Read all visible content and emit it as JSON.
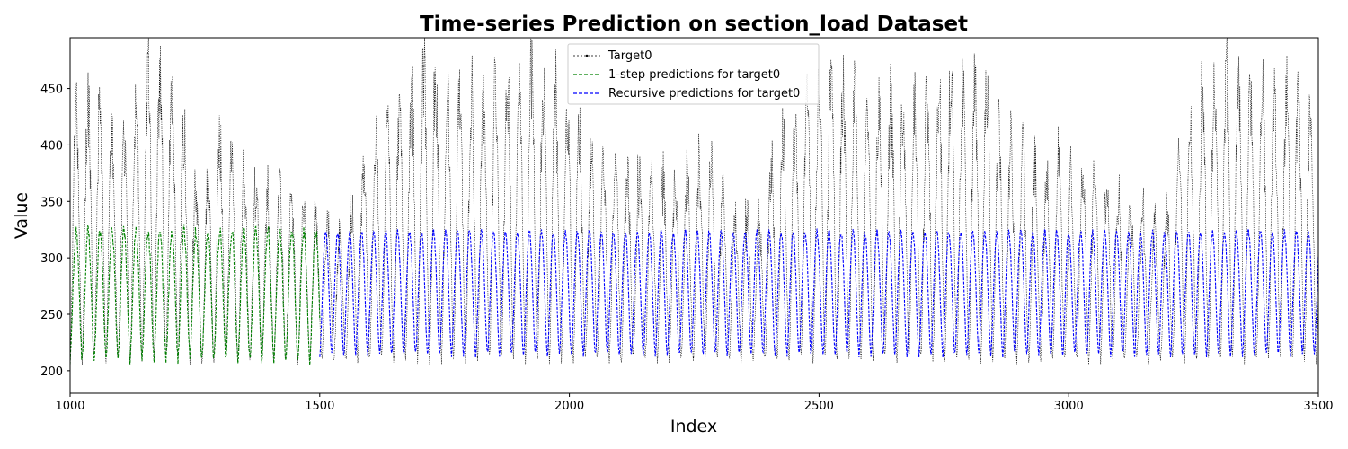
{
  "chart_data": {
    "type": "line",
    "title": "Time-series Prediction on section_load Dataset",
    "xlabel": "Index",
    "ylabel": "Value",
    "xlim": [
      1000,
      3500
    ],
    "ylim": [
      180,
      495
    ],
    "x_ticks": [
      1000,
      1500,
      2000,
      2500,
      3000,
      3500
    ],
    "y_ticks": [
      200,
      250,
      300,
      350,
      400,
      450
    ],
    "grid": false,
    "legend_position": "top-center",
    "series": [
      {
        "name": "Target0",
        "color": "#000000",
        "style": "dotted-with-markers",
        "x_range": [
          1000,
          3500
        ],
        "period": 24,
        "daily_low_range": [
          205,
          215
        ],
        "daily_peak_envelope": [
          {
            "x": 1000,
            "peak": 425
          },
          {
            "x": 1050,
            "peak": 445
          },
          {
            "x": 1100,
            "peak": 395
          },
          {
            "x": 1150,
            "peak": 460
          },
          {
            "x": 1210,
            "peak": 455
          },
          {
            "x": 1260,
            "peak": 345
          },
          {
            "x": 1300,
            "peak": 400
          },
          {
            "x": 1350,
            "peak": 370
          },
          {
            "x": 1400,
            "peak": 360
          },
          {
            "x": 1450,
            "peak": 345
          },
          {
            "x": 1500,
            "peak": 335
          },
          {
            "x": 1550,
            "peak": 320
          },
          {
            "x": 1600,
            "peak": 400
          },
          {
            "x": 1650,
            "peak": 420
          },
          {
            "x": 1710,
            "peak": 470
          },
          {
            "x": 1760,
            "peak": 440
          },
          {
            "x": 1800,
            "peak": 430
          },
          {
            "x": 1860,
            "peak": 440
          },
          {
            "x": 1930,
            "peak": 460
          },
          {
            "x": 2000,
            "peak": 420
          },
          {
            "x": 2060,
            "peak": 380
          },
          {
            "x": 2100,
            "peak": 380
          },
          {
            "x": 2150,
            "peak": 370
          },
          {
            "x": 2200,
            "peak": 360
          },
          {
            "x": 2280,
            "peak": 385
          },
          {
            "x": 2330,
            "peak": 335
          },
          {
            "x": 2380,
            "peak": 330
          },
          {
            "x": 2410,
            "peak": 395
          },
          {
            "x": 2450,
            "peak": 415
          },
          {
            "x": 2500,
            "peak": 465
          },
          {
            "x": 2570,
            "peak": 440
          },
          {
            "x": 2630,
            "peak": 440
          },
          {
            "x": 2700,
            "peak": 430
          },
          {
            "x": 2760,
            "peak": 460
          },
          {
            "x": 2830,
            "peak": 450
          },
          {
            "x": 2870,
            "peak": 400
          },
          {
            "x": 2900,
            "peak": 395
          },
          {
            "x": 2950,
            "peak": 375
          },
          {
            "x": 3000,
            "peak": 375
          },
          {
            "x": 3060,
            "peak": 370
          },
          {
            "x": 3100,
            "peak": 355
          },
          {
            "x": 3150,
            "peak": 335
          },
          {
            "x": 3190,
            "peak": 330
          },
          {
            "x": 3220,
            "peak": 400
          },
          {
            "x": 3270,
            "peak": 430
          },
          {
            "x": 3310,
            "peak": 475
          },
          {
            "x": 3350,
            "peak": 440
          },
          {
            "x": 3400,
            "peak": 440
          },
          {
            "x": 3450,
            "peak": 445
          },
          {
            "x": 3500,
            "peak": 410
          }
        ]
      },
      {
        "name": "1-step predictions for target0",
        "color": "#008000",
        "style": "dashed",
        "x_range": [
          1000,
          1500
        ],
        "period": 24,
        "low_range": [
          205,
          215
        ],
        "high_range": [
          318,
          330
        ]
      },
      {
        "name": "Recursive predictions for target0",
        "color": "#0000ff",
        "style": "dashed",
        "x_range": [
          1500,
          3500
        ],
        "period": 24,
        "low_range": [
          212,
          217
        ],
        "high_range": [
          320,
          326
        ]
      }
    ]
  }
}
